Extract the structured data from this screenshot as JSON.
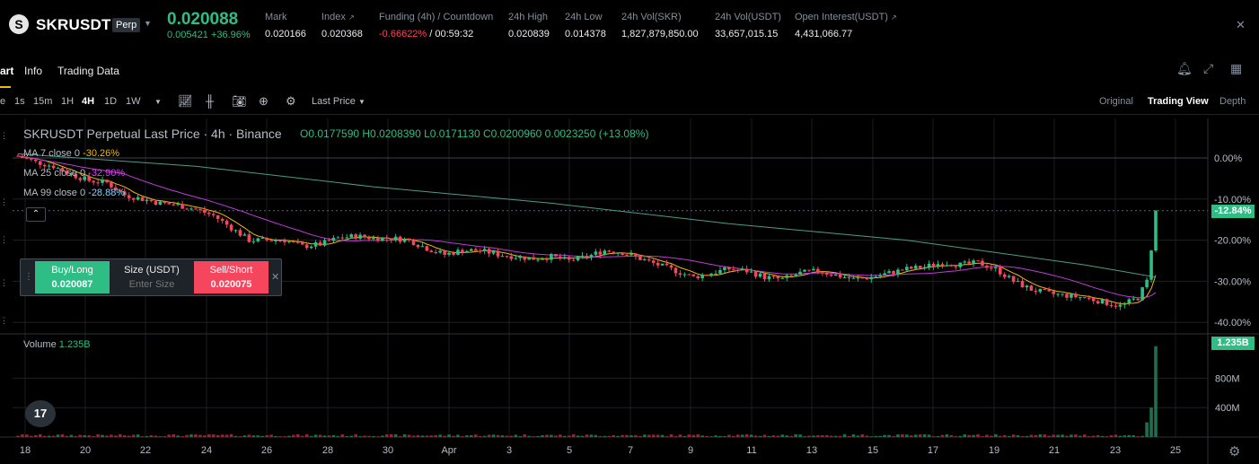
{
  "header": {
    "logo_glyph": "S",
    "symbol": "SKRUSDT",
    "badge": "Perp",
    "last_price": "0.020088",
    "change_abs": "0.005421",
    "change_pct": "+36.96%",
    "stats": [
      {
        "label": "Mark",
        "value": "0.020166"
      },
      {
        "label": "Index",
        "value": "0.020368"
      },
      {
        "label": "Funding (4h) / Countdown",
        "value_neg": "-0.66622%",
        "value": "/ 00:59:32"
      },
      {
        "label": "24h High",
        "value": "0.020839"
      },
      {
        "label": "24h Low",
        "value": "0.014378"
      },
      {
        "label": "24h Vol(SKR)",
        "value": "1,827,879,850.00"
      },
      {
        "label": "24h Vol(USDT)",
        "value": "33,657,015.15"
      },
      {
        "label": "Open Interest(USDT)",
        "value": "4,431,066.77"
      }
    ]
  },
  "tabs": [
    "art",
    "Info",
    "Trading Data"
  ],
  "toolbar": {
    "timeframes": [
      "e",
      "1s",
      "15m",
      "1H",
      "4H",
      "1D",
      "1W"
    ],
    "active_timeframe": "4H",
    "price_source": "Last Price",
    "views": [
      "Original",
      "Trading View",
      "Depth"
    ],
    "active_view": "Trading View"
  },
  "legend": {
    "title": "SKRUSDT Perpetual Last Price · 4h · Binance",
    "ohlc": "O0.0177590  H0.0208390  L0.0171130  C0.0200960  0.0023250  (+13.08%)",
    "ma": [
      {
        "label": "MA 7 close 0",
        "value": "-30.26%"
      },
      {
        "label": "MA 25 close 0",
        "value": "-32.90%"
      },
      {
        "label": "MA 99 close 0",
        "value": "-28.88%"
      }
    ],
    "volume_label": "Volume",
    "volume_value": "1.235B"
  },
  "order": {
    "buy_label": "Buy/Long",
    "buy_price": "0.020087",
    "size_label": "Size (USDT)",
    "size_placeholder": "Enter Size",
    "sell_label": "Sell/Short",
    "sell_price": "0.020075"
  },
  "tags": {
    "price_tag": "-12.84%",
    "volume_tag": "1.235B"
  },
  "chart_data": {
    "type": "candlestick",
    "price_axis_labels": [
      "0.00%",
      "-10.00%",
      "-20.00%",
      "-30.00%",
      "-40.00%"
    ],
    "price_axis_values": [
      0,
      -10,
      -20,
      -30,
      -40
    ],
    "volume_axis_labels": [
      "800M",
      "400M"
    ],
    "volume_axis_values": [
      800,
      400
    ],
    "x_tick_labels": [
      "18",
      "20",
      "22",
      "24",
      "26",
      "28",
      "30",
      "Apr",
      "3",
      "5",
      "7",
      "9",
      "11",
      "13",
      "15",
      "17",
      "19",
      "21",
      "23",
      "25"
    ],
    "path_pct": [
      [
        0,
        0.5
      ],
      [
        4,
        -1
      ],
      [
        8,
        -2
      ],
      [
        12,
        -4
      ],
      [
        16,
        -5.5
      ],
      [
        20,
        -6
      ],
      [
        24,
        -9
      ],
      [
        28,
        -10
      ],
      [
        32,
        -11
      ],
      [
        36,
        -11.5
      ],
      [
        40,
        -12.5
      ],
      [
        44,
        -14
      ],
      [
        48,
        -17
      ],
      [
        52,
        -20
      ],
      [
        56,
        -20
      ],
      [
        60,
        -20
      ],
      [
        64,
        -21.5
      ],
      [
        68,
        -21
      ],
      [
        72,
        -19.5
      ],
      [
        76,
        -19
      ],
      [
        80,
        -19.5
      ],
      [
        84,
        -19.5
      ],
      [
        88,
        -20
      ],
      [
        92,
        -22
      ],
      [
        96,
        -23.5
      ],
      [
        100,
        -22.5
      ],
      [
        104,
        -22.5
      ],
      [
        108,
        -23.5
      ],
      [
        112,
        -24
      ],
      [
        116,
        -24.5
      ],
      [
        120,
        -24
      ],
      [
        124,
        -25
      ],
      [
        128,
        -24
      ],
      [
        132,
        -22.5
      ],
      [
        136,
        -23
      ],
      [
        140,
        -24.5
      ],
      [
        144,
        -26
      ],
      [
        148,
        -27.5
      ],
      [
        152,
        -29
      ],
      [
        156,
        -28
      ],
      [
        160,
        -27
      ],
      [
        164,
        -27.5
      ],
      [
        168,
        -29
      ],
      [
        172,
        -29.5
      ],
      [
        176,
        -28
      ],
      [
        180,
        -27.5
      ],
      [
        184,
        -28.5
      ],
      [
        188,
        -29.5
      ],
      [
        192,
        -29
      ],
      [
        196,
        -28
      ],
      [
        200,
        -27
      ],
      [
        204,
        -26.5
      ],
      [
        208,
        -25.5
      ],
      [
        212,
        -26
      ],
      [
        216,
        -25.5
      ],
      [
        220,
        -27
      ],
      [
        224,
        -30
      ],
      [
        228,
        -32
      ],
      [
        232,
        -33
      ],
      [
        236,
        -33.5
      ],
      [
        240,
        -34
      ],
      [
        244,
        -35
      ],
      [
        248,
        -36
      ],
      [
        252,
        -34
      ],
      [
        254,
        -30
      ],
      [
        255,
        -22
      ],
      [
        256,
        -13
      ]
    ],
    "volume_M": {
      "typical": 25,
      "last": 1235,
      "prev": 400,
      "prev2": 200
    },
    "ma99_pct": [
      [
        0,
        1
      ],
      [
        40,
        -2
      ],
      [
        80,
        -7
      ],
      [
        120,
        -11
      ],
      [
        160,
        -16
      ],
      [
        200,
        -20
      ],
      [
        240,
        -26
      ],
      [
        256,
        -29
      ]
    ]
  }
}
